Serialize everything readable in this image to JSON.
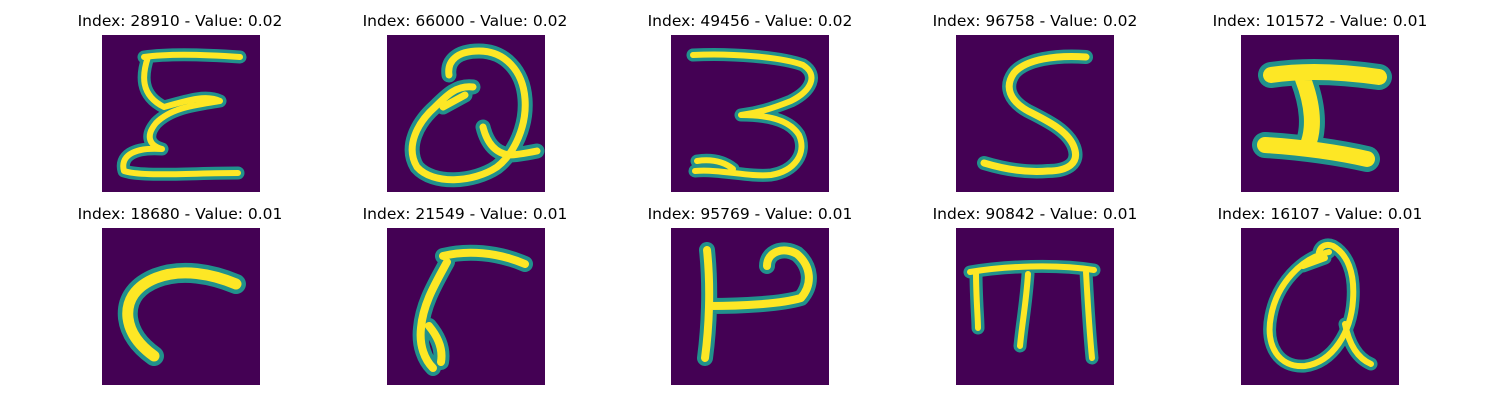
{
  "figure": {
    "colors": {
      "background": "#440154",
      "stroke_edge": "#21918c",
      "stroke_mid": "#7ad151",
      "stroke_core": "#fde725"
    },
    "panels": [
      {
        "index": 28910,
        "value": 0.02,
        "title": "Index: 28910 - Value: 0.02",
        "glyph": "handwritten-E"
      },
      {
        "index": 66000,
        "value": 0.02,
        "title": "Index: 66000 - Value: 0.02",
        "glyph": "handwritten-Q"
      },
      {
        "index": 49456,
        "value": 0.02,
        "title": "Index: 49456 - Value: 0.02",
        "glyph": "handwritten-3"
      },
      {
        "index": 96758,
        "value": 0.02,
        "title": "Index: 96758 - Value: 0.02",
        "glyph": "handwritten-S"
      },
      {
        "index": 101572,
        "value": 0.01,
        "title": "Index: 101572 - Value: 0.01",
        "glyph": "handwritten-I"
      },
      {
        "index": 18680,
        "value": 0.01,
        "title": "Index: 18680 - Value: 0.01",
        "glyph": "handwritten-r"
      },
      {
        "index": 21549,
        "value": 0.01,
        "title": "Index: 21549 - Value: 0.01",
        "glyph": "handwritten-r-slanted"
      },
      {
        "index": 95769,
        "value": 0.01,
        "title": "Index: 95769 - Value: 0.01",
        "glyph": "handwritten-P-rotated"
      },
      {
        "index": 90842,
        "value": 0.01,
        "title": "Index: 90842 - Value: 0.01",
        "glyph": "handwritten-m-rotated"
      },
      {
        "index": 16107,
        "value": 0.01,
        "title": "Index: 16107 - Value: 0.01",
        "glyph": "handwritten-a"
      }
    ]
  }
}
